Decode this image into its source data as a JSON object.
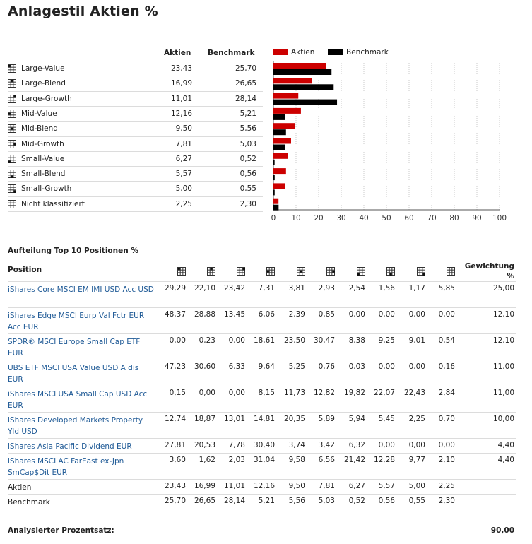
{
  "title": "Anlagestil Aktien %",
  "summary": {
    "col_aktien": "Aktien",
    "col_benchmark": "Benchmark",
    "rows": [
      {
        "icon": "large-value-style-box-icon",
        "label": "Large-Value",
        "aktien": "23,43",
        "benchmark": "25,70"
      },
      {
        "icon": "large-blend-style-box-icon",
        "label": "Large-Blend",
        "aktien": "16,99",
        "benchmark": "26,65"
      },
      {
        "icon": "large-growth-style-box-icon",
        "label": "Large-Growth",
        "aktien": "11,01",
        "benchmark": "28,14"
      },
      {
        "icon": "mid-value-style-box-icon",
        "label": "Mid-Value",
        "aktien": "12,16",
        "benchmark": "5,21"
      },
      {
        "icon": "mid-blend-style-box-icon",
        "label": "Mid-Blend",
        "aktien": "9,50",
        "benchmark": "5,56"
      },
      {
        "icon": "mid-growth-style-box-icon",
        "label": "Mid-Growth",
        "aktien": "7,81",
        "benchmark": "5,03"
      },
      {
        "icon": "small-value-style-box-icon",
        "label": "Small-Value",
        "aktien": "6,27",
        "benchmark": "0,52"
      },
      {
        "icon": "small-blend-style-box-icon",
        "label": "Small-Blend",
        "aktien": "5,57",
        "benchmark": "0,56"
      },
      {
        "icon": "small-growth-style-box-icon",
        "label": "Small-Growth",
        "aktien": "5,00",
        "benchmark": "0,55"
      },
      {
        "icon": "unclassified-style-box-icon",
        "label": "Nicht klassifiziert",
        "aktien": "2,25",
        "benchmark": "2,30"
      }
    ]
  },
  "chart_data": {
    "type": "bar",
    "orientation": "horizontal",
    "categories": [
      "Large-Value",
      "Large-Blend",
      "Large-Growth",
      "Mid-Value",
      "Mid-Blend",
      "Mid-Growth",
      "Small-Value",
      "Small-Blend",
      "Small-Growth",
      "Nicht klassifiziert"
    ],
    "series": [
      {
        "name": "Aktien",
        "color": "#cc0000",
        "values": [
          23.43,
          16.99,
          11.01,
          12.16,
          9.5,
          7.81,
          6.27,
          5.57,
          5.0,
          2.25
        ]
      },
      {
        "name": "Benchmark",
        "color": "#000000",
        "values": [
          25.7,
          26.65,
          28.14,
          5.21,
          5.56,
          5.03,
          0.52,
          0.56,
          0.55,
          2.3
        ]
      }
    ],
    "xlim": [
      0,
      100
    ],
    "xticks": [
      "0",
      "10",
      "20",
      "30",
      "40",
      "50",
      "60",
      "70",
      "80",
      "90",
      "100"
    ],
    "grid": "vertical-dotted",
    "legend": "top"
  },
  "top10": {
    "title": "Aufteilung Top 10 Positionen %",
    "col_position": "Position",
    "col_weight_line1": "Gewichtung",
    "col_weight_line2": "%",
    "col_icons": [
      "large-value-style-box-icon",
      "large-blend-style-box-icon",
      "large-growth-style-box-icon",
      "mid-value-style-box-icon",
      "mid-blend-style-box-icon",
      "mid-growth-style-box-icon",
      "small-value-style-box-icon",
      "small-blend-style-box-icon",
      "small-growth-style-box-icon",
      "unclassified-style-box-icon"
    ],
    "rows": [
      {
        "name": "iShares Core MSCI EM IMI USD Acc USD",
        "link": true,
        "values": [
          "29,29",
          "22,10",
          "23,42",
          "7,31",
          "3,81",
          "2,93",
          "2,54",
          "1,56",
          "1,17",
          "5,85"
        ],
        "weight": "25,00"
      },
      {
        "name": "iShares Edge MSCI Eurp Val Fctr EUR Acc EUR",
        "link": true,
        "values": [
          "48,37",
          "28,88",
          "13,45",
          "6,06",
          "2,39",
          "0,85",
          "0,00",
          "0,00",
          "0,00",
          "0,00"
        ],
        "weight": "12,10"
      },
      {
        "name": "SPDR® MSCI Europe Small Cap ETF EUR",
        "link": true,
        "values": [
          "0,00",
          "0,23",
          "0,00",
          "18,61",
          "23,50",
          "30,47",
          "8,38",
          "9,25",
          "9,01",
          "0,54"
        ],
        "weight": "12,10"
      },
      {
        "name": "UBS ETF MSCI USA Value USD A dis EUR",
        "link": true,
        "values": [
          "47,23",
          "30,60",
          "6,33",
          "9,64",
          "5,25",
          "0,76",
          "0,03",
          "0,00",
          "0,00",
          "0,16"
        ],
        "weight": "11,00"
      },
      {
        "name": "iShares MSCI USA Small Cap USD Acc EUR",
        "link": true,
        "values": [
          "0,15",
          "0,00",
          "0,00",
          "8,15",
          "11,73",
          "12,82",
          "19,82",
          "22,07",
          "22,43",
          "2,84"
        ],
        "weight": "11,00"
      },
      {
        "name": "iShares Developed Markets Property Yld USD",
        "link": true,
        "values": [
          "12,74",
          "18,87",
          "13,01",
          "14,81",
          "20,35",
          "5,89",
          "5,94",
          "5,45",
          "2,25",
          "0,70"
        ],
        "weight": "10,00"
      },
      {
        "name": "iShares Asia Pacific Dividend EUR",
        "link": true,
        "values": [
          "27,81",
          "20,53",
          "7,78",
          "30,40",
          "3,74",
          "3,42",
          "6,32",
          "0,00",
          "0,00",
          "0,00"
        ],
        "weight": "4,40"
      },
      {
        "name": "iShares MSCI AC FarEast ex-Jpn SmCap$Dit EUR",
        "link": true,
        "values": [
          "3,60",
          "1,62",
          "2,03",
          "31,04",
          "9,58",
          "6,56",
          "21,42",
          "12,28",
          "9,77",
          "2,10"
        ],
        "weight": "4,40"
      },
      {
        "name": "Aktien",
        "link": false,
        "values": [
          "23,43",
          "16,99",
          "11,01",
          "12,16",
          "9,50",
          "7,81",
          "6,27",
          "5,57",
          "5,00",
          "2,25"
        ],
        "weight": ""
      },
      {
        "name": "Benchmark",
        "link": false,
        "values": [
          "25,70",
          "26,65",
          "28,14",
          "5,21",
          "5,56",
          "5,03",
          "0,52",
          "0,56",
          "0,55",
          "2,30"
        ],
        "weight": ""
      }
    ]
  },
  "footer": {
    "label": "Analysierter Prozentsatz:",
    "value": "90,00"
  }
}
